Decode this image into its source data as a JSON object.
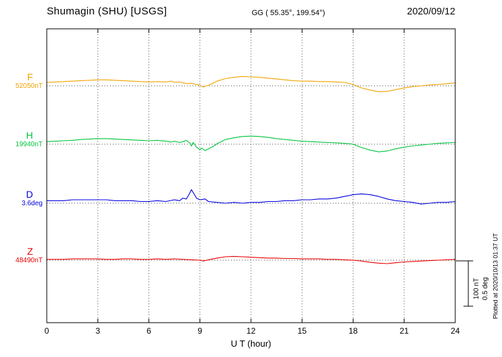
{
  "header": {
    "title": "Shumagin (SHU)  [USGS]",
    "coords": "GG ( 55.35°, 199.54°)",
    "date": "2020/09/12"
  },
  "axis": {
    "xlabel": "U T (hour)"
  },
  "scale_bar": {
    "nt_label": "100 nT",
    "deg_label": "0.5 deg"
  },
  "footer_note": "Plotted at 2020/10/13 01:37 UT",
  "chart_data": {
    "type": "line",
    "title": "Shumagin (SHU) [USGS] magnetogram 2020/09/12",
    "xlabel": "U T (hour)",
    "x_range": [
      0,
      24
    ],
    "x_ticks": [
      0,
      3,
      6,
      9,
      12,
      15,
      18,
      21,
      24
    ],
    "grid": "dotted vertical at 3h intervals, dotted horizontal at each channel baseline",
    "legend_position": "left channel labels",
    "scale": {
      "nT_per_div": 100,
      "deg_per_div": 0.5
    },
    "series": [
      {
        "name": "F",
        "unit": "nT",
        "baseline": 52050,
        "baseline_label": "52050nT",
        "color": "#f0a400",
        "points": [
          [
            0,
            8
          ],
          [
            0.5,
            9
          ],
          [
            1,
            10
          ],
          [
            1.5,
            11
          ],
          [
            2,
            12
          ],
          [
            2.5,
            13
          ],
          [
            3,
            14
          ],
          [
            3.5,
            14
          ],
          [
            4,
            13
          ],
          [
            4.5,
            12
          ],
          [
            5,
            11
          ],
          [
            5.5,
            10
          ],
          [
            6,
            9
          ],
          [
            6.5,
            10
          ],
          [
            7,
            9
          ],
          [
            7.3,
            11
          ],
          [
            7.5,
            8
          ],
          [
            7.8,
            9
          ],
          [
            8,
            7
          ],
          [
            8.3,
            5
          ],
          [
            8.5,
            6
          ],
          [
            8.8,
            3
          ],
          [
            9,
            1
          ],
          [
            9.2,
            -3
          ],
          [
            9.4,
            0
          ],
          [
            9.6,
            3
          ],
          [
            9.8,
            7
          ],
          [
            10,
            11
          ],
          [
            10.5,
            17
          ],
          [
            11,
            20
          ],
          [
            11.5,
            22
          ],
          [
            12,
            21
          ],
          [
            12.5,
            20
          ],
          [
            13,
            18
          ],
          [
            13.5,
            16
          ],
          [
            14,
            14
          ],
          [
            14.5,
            12
          ],
          [
            15,
            11
          ],
          [
            15.5,
            11
          ],
          [
            16,
            10
          ],
          [
            16.5,
            10
          ],
          [
            17,
            9
          ],
          [
            17.5,
            8
          ],
          [
            18,
            3
          ],
          [
            18.5,
            -5
          ],
          [
            19,
            -10
          ],
          [
            19.5,
            -14
          ],
          [
            20,
            -13
          ],
          [
            20.5,
            -9
          ],
          [
            21,
            -5
          ],
          [
            21.5,
            -2
          ],
          [
            22,
            0
          ],
          [
            22.5,
            2
          ],
          [
            23,
            3
          ],
          [
            23.5,
            5
          ],
          [
            24,
            7
          ]
        ]
      },
      {
        "name": "H",
        "unit": "nT",
        "baseline": 19940,
        "baseline_label": "19940nT",
        "color": "#00c43c",
        "points": [
          [
            0,
            6
          ],
          [
            0.5,
            7
          ],
          [
            1,
            8
          ],
          [
            1.5,
            9
          ],
          [
            2,
            11
          ],
          [
            2.5,
            12
          ],
          [
            3,
            13
          ],
          [
            3.5,
            13
          ],
          [
            4,
            12
          ],
          [
            4.5,
            11
          ],
          [
            5,
            10
          ],
          [
            5.5,
            9
          ],
          [
            6,
            8
          ],
          [
            6.5,
            9
          ],
          [
            7,
            7
          ],
          [
            7.3,
            5
          ],
          [
            7.5,
            7
          ],
          [
            7.8,
            4
          ],
          [
            8,
            6
          ],
          [
            8.2,
            9
          ],
          [
            8.4,
            3
          ],
          [
            8.5,
            -4
          ],
          [
            8.6,
            4
          ],
          [
            8.8,
            -7
          ],
          [
            9,
            -13
          ],
          [
            9.1,
            -9
          ],
          [
            9.3,
            -15
          ],
          [
            9.5,
            -11
          ],
          [
            9.8,
            -5
          ],
          [
            10,
            1
          ],
          [
            10.3,
            7
          ],
          [
            10.5,
            11
          ],
          [
            11,
            15
          ],
          [
            11.5,
            18
          ],
          [
            12,
            19
          ],
          [
            12.5,
            18
          ],
          [
            13,
            16
          ],
          [
            13.5,
            13
          ],
          [
            14,
            11
          ],
          [
            14.5,
            9
          ],
          [
            15,
            7
          ],
          [
            15.5,
            6
          ],
          [
            16,
            5
          ],
          [
            16.5,
            4
          ],
          [
            17,
            3
          ],
          [
            17.5,
            2
          ],
          [
            18,
            0
          ],
          [
            18.5,
            -8
          ],
          [
            19,
            -14
          ],
          [
            19.5,
            -18
          ],
          [
            20,
            -16
          ],
          [
            20.5,
            -11
          ],
          [
            21,
            -7
          ],
          [
            21.5,
            -4
          ],
          [
            22,
            -2
          ],
          [
            22.5,
            0
          ],
          [
            23,
            2
          ],
          [
            23.5,
            3
          ],
          [
            24,
            4
          ]
        ]
      },
      {
        "name": "D",
        "unit": "deg",
        "baseline": 3.6,
        "baseline_label": "3.6deg",
        "color": "#0000e0",
        "points": [
          [
            0,
            0.03
          ],
          [
            0.5,
            0.03
          ],
          [
            1,
            0.03
          ],
          [
            1.5,
            0.04
          ],
          [
            2,
            0.04
          ],
          [
            2.5,
            0.04
          ],
          [
            3,
            0.04
          ],
          [
            3.5,
            0.04
          ],
          [
            4,
            0.03
          ],
          [
            4.5,
            0.03
          ],
          [
            5,
            0.03
          ],
          [
            5.5,
            0.02
          ],
          [
            6,
            0.02
          ],
          [
            6.5,
            0.03
          ],
          [
            7,
            0.02
          ],
          [
            7.5,
            0.04
          ],
          [
            7.8,
            0.03
          ],
          [
            8,
            0.06
          ],
          [
            8.2,
            0.05
          ],
          [
            8.35,
            0.1
          ],
          [
            8.5,
            0.16
          ],
          [
            8.65,
            0.11
          ],
          [
            8.8,
            0.06
          ],
          [
            9,
            0.04
          ],
          [
            9.3,
            0.05
          ],
          [
            9.5,
            0.02
          ],
          [
            10,
            0.01
          ],
          [
            10.5,
            0
          ],
          [
            11,
            0.01
          ],
          [
            11.5,
            0
          ],
          [
            12,
            0.01
          ],
          [
            12.5,
            0.01
          ],
          [
            13,
            0.02
          ],
          [
            13.5,
            0.02
          ],
          [
            14,
            0.03
          ],
          [
            14.5,
            0.03
          ],
          [
            15,
            0.04
          ],
          [
            15.5,
            0.04
          ],
          [
            16,
            0.05
          ],
          [
            16.5,
            0.05
          ],
          [
            17,
            0.06
          ],
          [
            17.5,
            0.08
          ],
          [
            18,
            0.1
          ],
          [
            18.5,
            0.11
          ],
          [
            19,
            0.1
          ],
          [
            19.5,
            0.08
          ],
          [
            20,
            0.05
          ],
          [
            20.5,
            0.03
          ],
          [
            21,
            0.02
          ],
          [
            21.5,
            0.01
          ],
          [
            22,
            -0.01
          ],
          [
            22.5,
            0
          ],
          [
            23,
            0.01
          ],
          [
            23.5,
            0.01
          ],
          [
            24,
            0.02
          ]
        ]
      },
      {
        "name": "Z",
        "unit": "nT",
        "baseline": 48490,
        "baseline_label": "48490nT",
        "color": "#e80000",
        "points": [
          [
            0,
            2
          ],
          [
            0.5,
            2
          ],
          [
            1,
            2
          ],
          [
            1.5,
            3
          ],
          [
            2,
            3
          ],
          [
            2.5,
            3
          ],
          [
            3,
            3
          ],
          [
            3.5,
            2
          ],
          [
            4,
            2
          ],
          [
            4.5,
            3
          ],
          [
            5,
            3
          ],
          [
            5.5,
            2
          ],
          [
            6,
            2
          ],
          [
            6.5,
            3
          ],
          [
            7,
            2
          ],
          [
            7.5,
            3
          ],
          [
            8,
            2
          ],
          [
            8.5,
            1
          ],
          [
            9,
            0
          ],
          [
            9.2,
            -2
          ],
          [
            9.5,
            1
          ],
          [
            10,
            5
          ],
          [
            10.5,
            8
          ],
          [
            11,
            9
          ],
          [
            11.5,
            8
          ],
          [
            12,
            7
          ],
          [
            12.5,
            6
          ],
          [
            13,
            5
          ],
          [
            13.5,
            5
          ],
          [
            14,
            4
          ],
          [
            14.5,
            4
          ],
          [
            15,
            3
          ],
          [
            15.5,
            3
          ],
          [
            16,
            3
          ],
          [
            16.5,
            2
          ],
          [
            17,
            2
          ],
          [
            17.5,
            1
          ],
          [
            18,
            0
          ],
          [
            18.5,
            -2
          ],
          [
            19,
            -5
          ],
          [
            19.5,
            -7
          ],
          [
            20,
            -8
          ],
          [
            20.5,
            -6
          ],
          [
            21,
            -4
          ],
          [
            21.5,
            -3
          ],
          [
            22,
            -2
          ],
          [
            22.5,
            -1
          ],
          [
            23,
            0
          ],
          [
            23.5,
            1
          ],
          [
            24,
            2
          ]
        ]
      }
    ]
  }
}
